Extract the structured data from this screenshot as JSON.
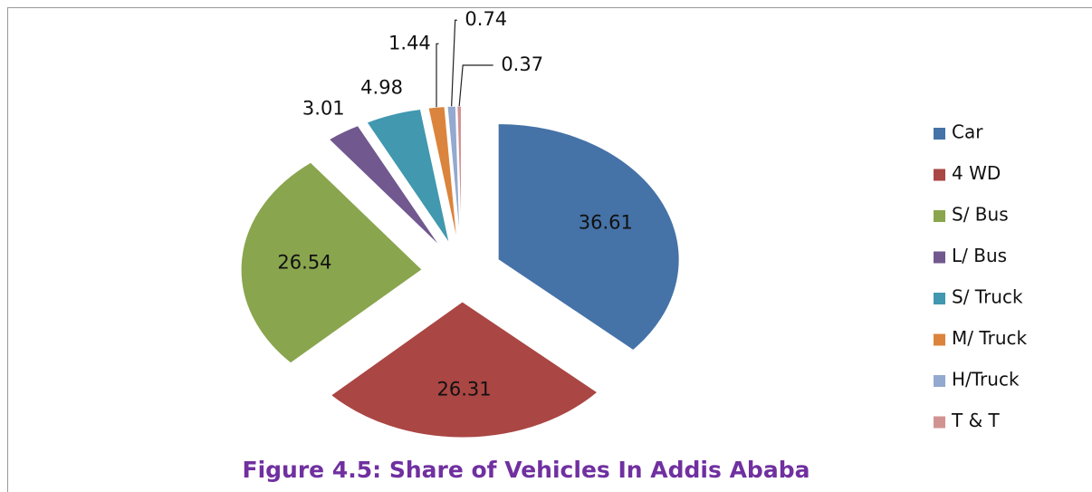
{
  "chart_data": {
    "type": "pie",
    "title": "Figure 4.5: Share of Vehicles In Addis Ababa",
    "categories": [
      "Car",
      "4 WD",
      "S/ Bus",
      "L/ Bus",
      "S/ Truck",
      "M/ Truck",
      "H/Truck",
      "T & T"
    ],
    "values": [
      36.61,
      26.31,
      26.54,
      3.01,
      4.98,
      1.44,
      0.74,
      0.37
    ],
    "colors": [
      "#4572a7",
      "#aa4643",
      "#89a54e",
      "#71588f",
      "#4198af",
      "#db843d",
      "#93a9cf",
      "#d19392"
    ],
    "legend": "right"
  }
}
